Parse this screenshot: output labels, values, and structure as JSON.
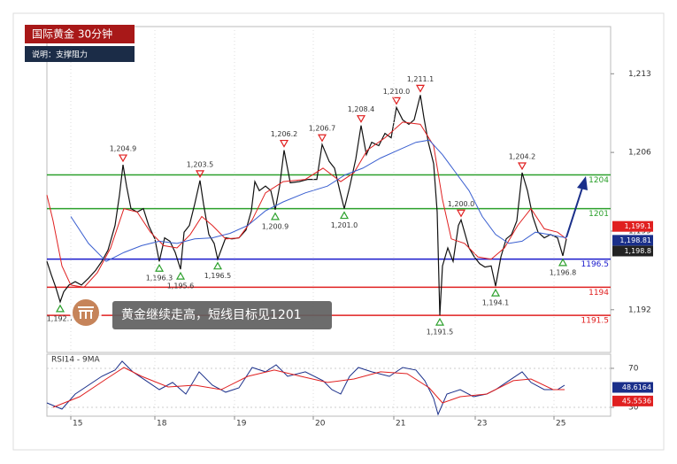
{
  "chart_data": [
    {
      "type": "line",
      "title": "国际黄金 30分钟",
      "subtitle": "说明：支撑阻力",
      "annotation": "黄金继续走高，短线目标见1201",
      "xlim": [
        0,
        637
      ],
      "ylim": [
        1188.2,
        1217.2
      ],
      "yticks": [
        {
          "value": 1213,
          "label": "1,213"
        },
        {
          "value": 1206,
          "label": "1,206"
        },
        {
          "value": 1199,
          "label": "1,199"
        },
        {
          "value": 1192,
          "label": "1,192"
        }
      ],
      "series": [
        {
          "color": "#111111",
          "x": [
            0,
            5,
            10,
            15,
            19,
            25,
            32,
            39,
            47,
            55,
            62,
            69,
            77,
            82,
            86,
            90,
            95,
            102,
            109,
            115,
            122,
            127,
            133,
            139,
            145,
            151,
            155,
            161,
            167,
            173,
            177,
            183,
            189,
            193,
            202,
            209,
            217,
            225,
            231,
            235,
            240,
            247,
            253,
            258,
            263,
            268,
            275,
            285,
            295,
            305,
            311,
            319,
            325,
            331,
            336,
            342,
            349,
            355,
            361,
            367,
            375,
            382,
            389,
            395,
            402,
            409,
            415,
            422,
            426,
            431,
            437,
            441,
            444,
            447,
            453,
            459,
            465,
            468,
            477,
            483,
            489,
            495,
            502,
            507,
            513,
            519,
            525,
            531,
            537,
            543,
            549,
            555,
            562,
            569,
            577,
            583,
            587
          ],
          "values": [
            1196.3,
            1195.1,
            1194.0,
            1192.7,
            1193.6,
            1194.2,
            1194.5,
            1194.2,
            1194.8,
            1195.5,
            1196.3,
            1197.3,
            1199.5,
            1202.2,
            1204.9,
            1203.0,
            1201.0,
            1200.7,
            1201.0,
            1199.5,
            1198.3,
            1196.3,
            1198.4,
            1198.1,
            1197.1,
            1195.6,
            1198.9,
            1199.5,
            1201.4,
            1203.5,
            1201.4,
            1198.7,
            1197.9,
            1196.5,
            1198.4,
            1198.3,
            1198.4,
            1199.1,
            1200.8,
            1203.4,
            1202.6,
            1203.0,
            1202.6,
            1200.9,
            1203.0,
            1206.2,
            1203.3,
            1203.4,
            1203.6,
            1203.6,
            1206.7,
            1205.2,
            1204.6,
            1202.6,
            1201.0,
            1202.9,
            1205.4,
            1208.4,
            1205.8,
            1206.9,
            1206.6,
            1207.7,
            1207.3,
            1210.0,
            1208.9,
            1208.5,
            1208.9,
            1211.1,
            1209.1,
            1206.9,
            1205.0,
            1200.7,
            1191.5,
            1195.9,
            1197.5,
            1196.3,
            1199.5,
            1200.0,
            1197.5,
            1196.7,
            1196.1,
            1195.8,
            1195.9,
            1194.1,
            1196.7,
            1198.3,
            1198.7,
            1199.9,
            1204.2,
            1202.6,
            1200.3,
            1198.9,
            1198.4,
            1198.7,
            1198.4,
            1196.8,
            1198.3
          ]
        },
        {
          "color": "#e02020",
          "x": [
            0,
            7,
            17,
            27,
            42,
            57,
            72,
            87,
            102,
            117,
            132,
            147,
            162,
            175,
            187,
            202,
            217,
            232,
            247,
            267,
            292,
            312,
            332,
            347,
            362,
            382,
            402,
            422,
            437,
            447,
            457,
            472,
            487,
            502,
            517,
            532,
            547,
            562,
            577,
            587
          ],
          "values": [
            1202.2,
            1199.9,
            1195.9,
            1194.2,
            1194.0,
            1195.3,
            1197.5,
            1201.0,
            1200.7,
            1198.9,
            1197.7,
            1197.5,
            1198.7,
            1200.3,
            1199.5,
            1198.3,
            1198.4,
            1200.0,
            1202.4,
            1203.4,
            1203.6,
            1204.6,
            1203.4,
            1204.2,
            1206.2,
            1207.3,
            1208.7,
            1208.5,
            1206.6,
            1201.8,
            1198.3,
            1197.9,
            1196.7,
            1196.5,
            1197.5,
            1199.5,
            1201.0,
            1199.2,
            1198.9,
            1198.3
          ]
        },
        {
          "color": "#3a5fd0",
          "x": [
            27,
            47,
            67,
            87,
            107,
            127,
            147,
            167,
            187,
            207,
            227,
            247,
            267,
            292,
            317,
            337,
            357,
            377,
            397,
            417,
            432,
            447,
            462,
            477,
            492,
            507,
            522,
            537,
            552,
            567,
            587
          ],
          "values": [
            1200.3,
            1197.9,
            1196.3,
            1197.1,
            1197.7,
            1198.1,
            1197.9,
            1198.3,
            1198.4,
            1198.8,
            1199.5,
            1200.8,
            1201.6,
            1202.4,
            1203.0,
            1204.0,
            1204.6,
            1205.5,
            1206.2,
            1206.9,
            1207.1,
            1205.8,
            1204.2,
            1202.6,
            1200.3,
            1198.7,
            1197.9,
            1198.1,
            1198.9,
            1198.7,
            1198.4
          ]
        }
      ],
      "levels": [
        {
          "value": 1204,
          "color": "#2ca02c"
        },
        {
          "value": 1201,
          "color": "#2ca02c"
        },
        {
          "value": 1196.5,
          "color": "#1a1acc"
        },
        {
          "value": 1194,
          "color": "#e02020"
        },
        {
          "value": 1191.5,
          "color": "#e02020"
        }
      ],
      "annotations": [
        {
          "label": "1,192.7",
          "x": 15,
          "y": 1192.7,
          "marker": "low"
        },
        {
          "label": "1,204.9",
          "x": 86,
          "y": 1204.9,
          "marker": "high"
        },
        {
          "label": "1,196.3",
          "x": 127,
          "y": 1196.3,
          "marker": "low"
        },
        {
          "label": "1,195.6",
          "x": 151,
          "y": 1195.6,
          "marker": "low"
        },
        {
          "label": "1,203.5",
          "x": 173,
          "y": 1203.5,
          "marker": "high"
        },
        {
          "label": "1,196.5",
          "x": 193,
          "y": 1196.5,
          "marker": "low"
        },
        {
          "label": "1,200.9",
          "x": 258,
          "y": 1200.9,
          "marker": "low"
        },
        {
          "label": "1,206.2",
          "x": 268,
          "y": 1206.2,
          "marker": "high"
        },
        {
          "label": "1,206.7",
          "x": 311,
          "y": 1206.7,
          "marker": "high"
        },
        {
          "label": "1,201.0",
          "x": 336,
          "y": 1201.0,
          "marker": "low"
        },
        {
          "label": "1,208.4",
          "x": 355,
          "y": 1208.4,
          "marker": "high"
        },
        {
          "label": "1,210.0",
          "x": 395,
          "y": 1210.0,
          "marker": "high"
        },
        {
          "label": "1,211.1",
          "x": 422,
          "y": 1211.1,
          "marker": "high"
        },
        {
          "label": "1,191.5",
          "x": 444,
          "y": 1191.5,
          "marker": "low"
        },
        {
          "label": "1,200.0",
          "x": 468,
          "y": 1200.0,
          "marker": "high"
        },
        {
          "label": "1,194.1",
          "x": 507,
          "y": 1194.1,
          "marker": "low"
        },
        {
          "label": "1,204.2",
          "x": 537,
          "y": 1204.2,
          "marker": "high"
        },
        {
          "label": "1,196.8",
          "x": 583,
          "y": 1196.8,
          "marker": "low"
        }
      ],
      "price_tags": [
        {
          "label": "1,199.1",
          "value": 1199.1,
          "color": "#e02020"
        },
        {
          "label": "1,198.81",
          "value": 1198.81,
          "color": "#1a2f8a"
        },
        {
          "label": "1,198.8",
          "value": 1198.8,
          "color": "#222222"
        }
      ]
    },
    {
      "type": "line",
      "title": "RSI14 - 9MA",
      "xlim": [
        0,
        637
      ],
      "ylim": [
        20.9,
        84.5
      ],
      "yticks": [
        70,
        30
      ],
      "xticks": [
        {
          "value": 27,
          "label": "15"
        },
        {
          "value": 122,
          "label": "18"
        },
        {
          "value": 212,
          "label": "19"
        },
        {
          "value": 301,
          "label": "20"
        },
        {
          "value": 392,
          "label": "21"
        },
        {
          "value": 484,
          "label": "23"
        },
        {
          "value": 573,
          "label": "25"
        }
      ],
      "series": [
        {
          "color": "#1a2f8a",
          "x": [
            0,
            17,
            32,
            47,
            62,
            77,
            85,
            97,
            112,
            127,
            142,
            157,
            172,
            187,
            202,
            217,
            232,
            247,
            259,
            272,
            292,
            312,
            322,
            332,
            342,
            352,
            367,
            387,
            402,
            417,
            427,
            437,
            442,
            452,
            467,
            482,
            497,
            507,
            522,
            537,
            547,
            562,
            577,
            585
          ],
          "values": [
            34.5,
            28.2,
            43.6,
            52.7,
            61.8,
            68.2,
            77.3,
            66.4,
            57.3,
            48.2,
            55.5,
            43.6,
            66.4,
            52.7,
            45.5,
            50,
            70.9,
            66.4,
            73.6,
            61.8,
            66.4,
            57.3,
            48.2,
            43.6,
            61.8,
            70.9,
            66.4,
            61.8,
            70.9,
            68.2,
            57.3,
            39.1,
            22.7,
            43.6,
            48.2,
            40.9,
            43.6,
            48.2,
            57.3,
            66.4,
            55.5,
            48.2,
            48.2,
            52.7
          ]
        },
        {
          "color": "#e02020",
          "x": [
            7,
            37,
            67,
            87,
            107,
            137,
            167,
            197,
            227,
            257,
            287,
            317,
            347,
            377,
            407,
            432,
            447,
            467,
            497,
            527,
            547,
            572,
            585
          ],
          "values": [
            30,
            40.9,
            59.1,
            70.9,
            61.8,
            50.9,
            52.7,
            48.2,
            61.8,
            68.2,
            61.8,
            55.5,
            59.1,
            66.4,
            64.5,
            50,
            34.5,
            40.9,
            43.6,
            57.3,
            59.1,
            48.2,
            48.2
          ]
        }
      ],
      "price_tags": [
        {
          "value": 48.6164,
          "color": "#1a2f8a"
        },
        {
          "value": 45.5536,
          "color": "#e02020"
        }
      ]
    }
  ]
}
